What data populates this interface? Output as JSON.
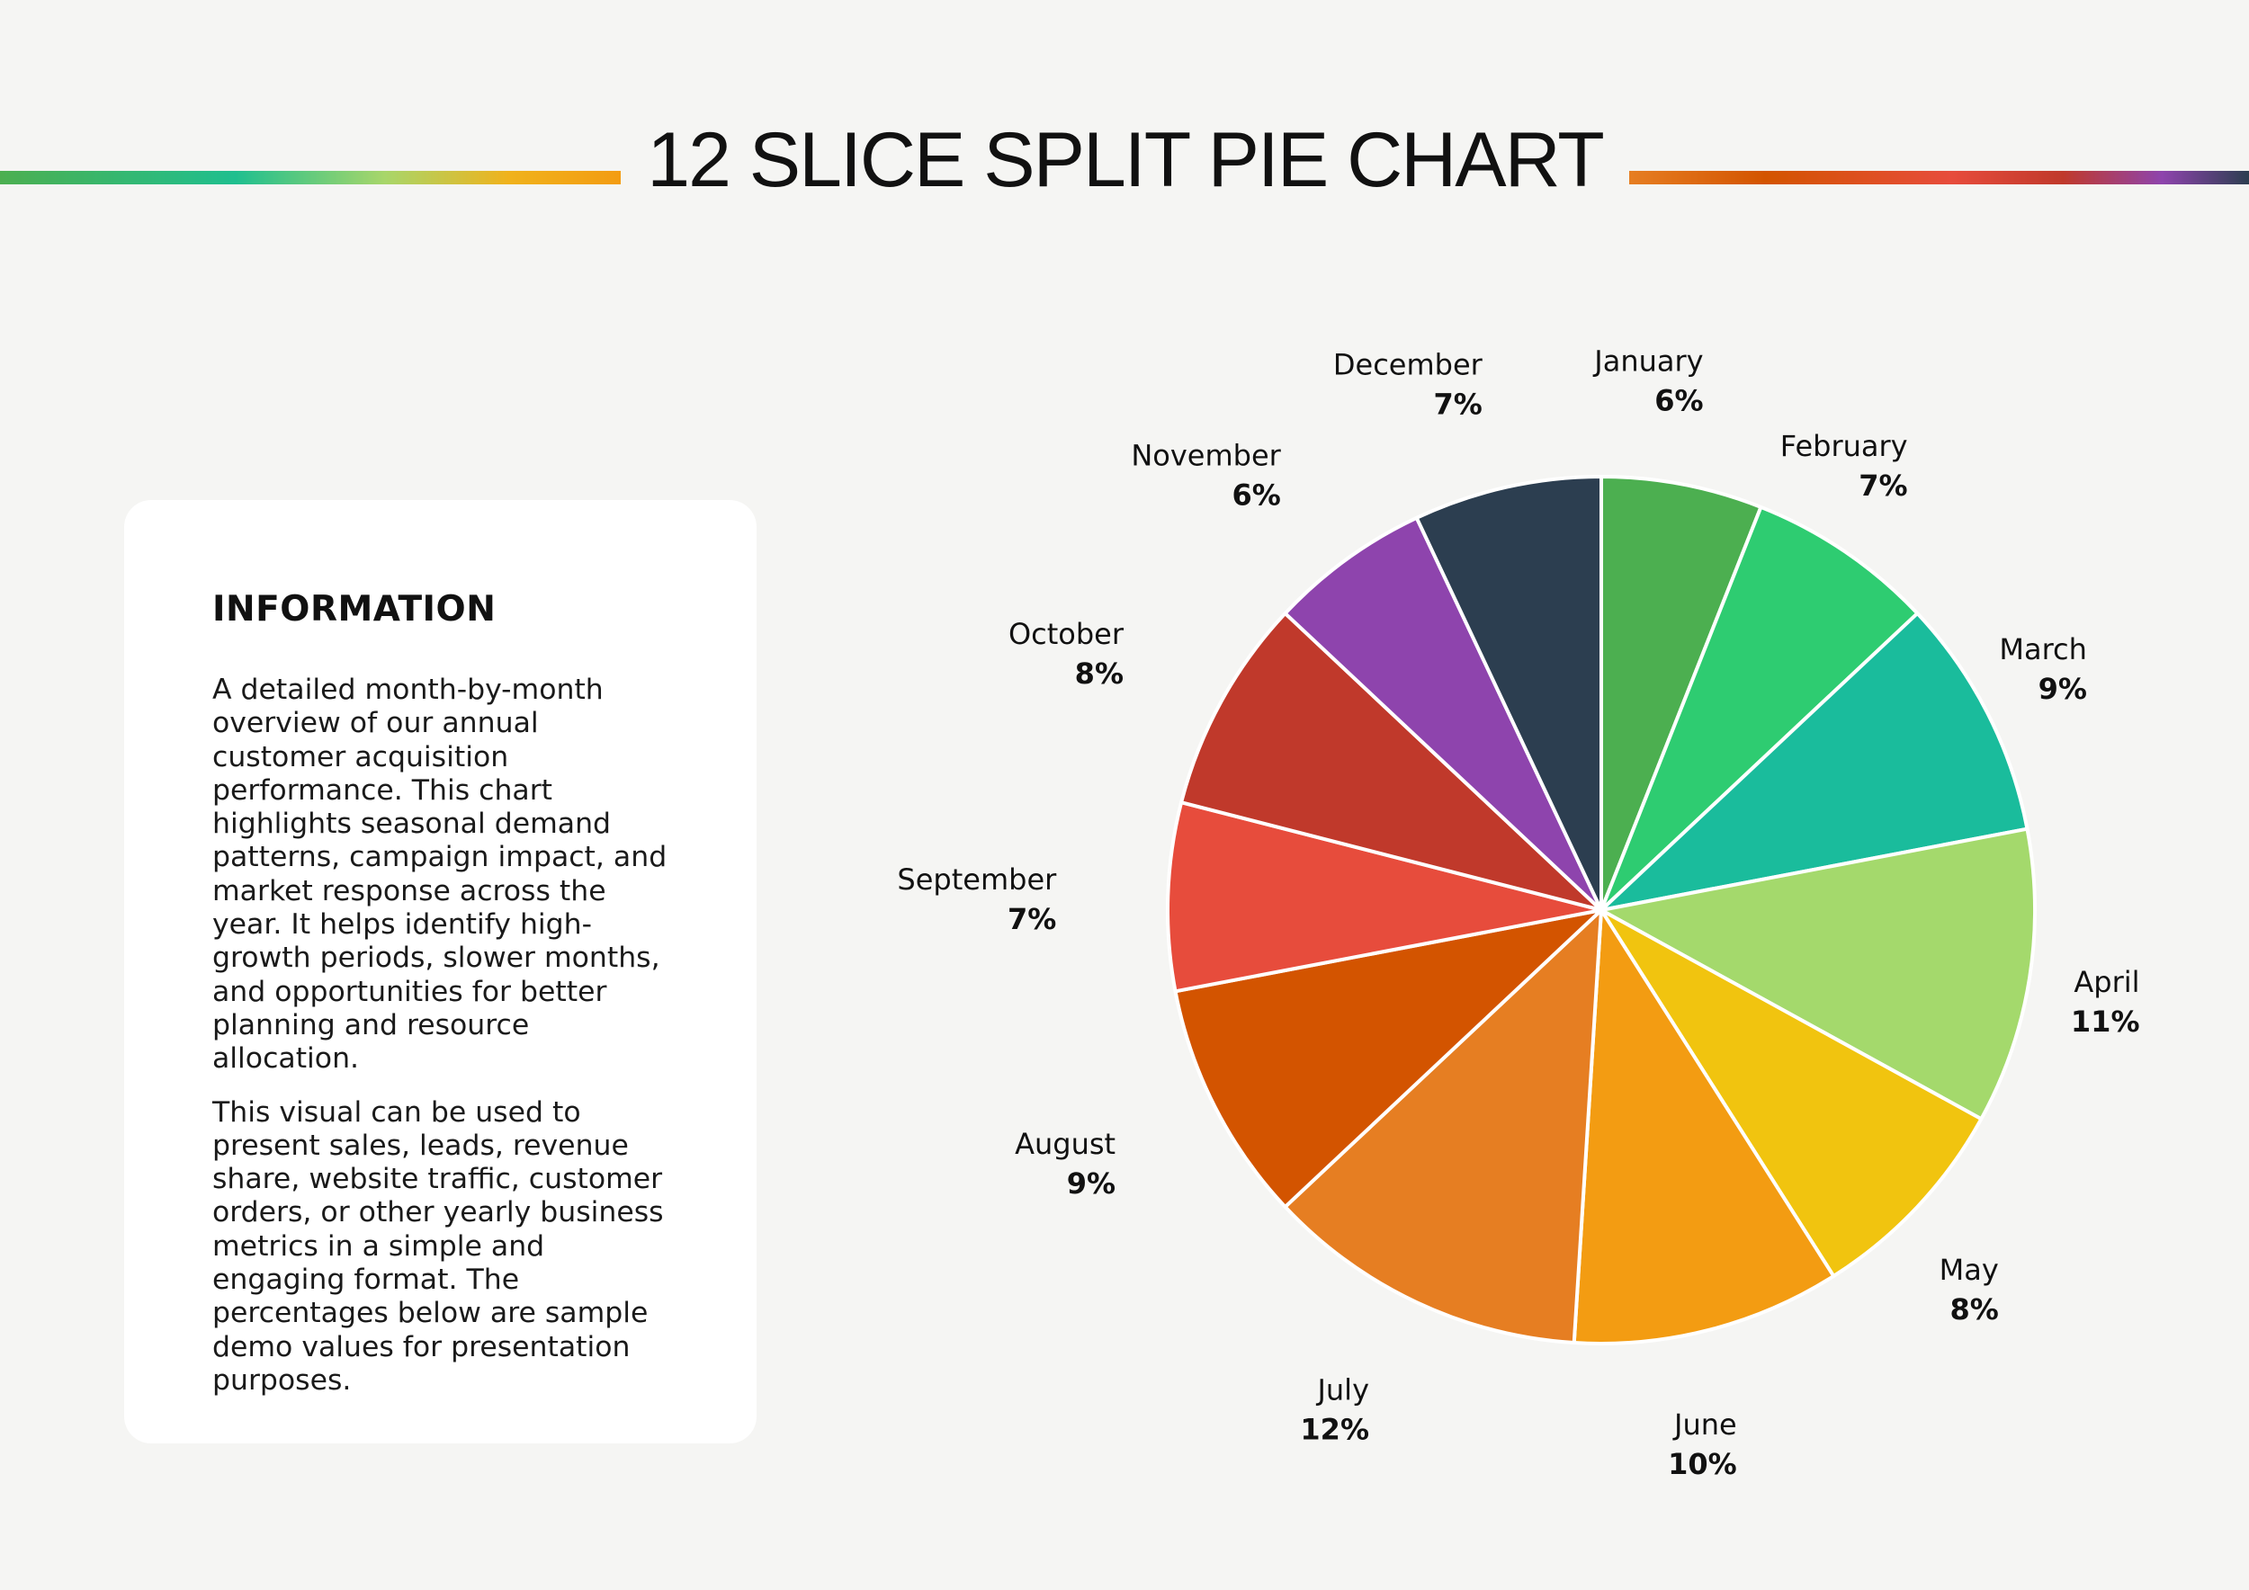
{
  "header": {
    "title": "12 SLICE SPLIT PIE CHART"
  },
  "info": {
    "heading": "INFORMATION",
    "paragraph_1": "A detailed month-by-month overview of our annual customer acquisition performance. This chart highlights seasonal demand patterns, campaign impact, and market response across the year. It helps identify high-growth periods, slower months, and opportunities for better planning and resource allocation.",
    "paragraph_2": "This visual can be used to present sales, leads, revenue share, website traffic, customer orders, or other yearly business metrics in a simple and engaging format. The percentages below are sample demo values for presentation purposes."
  },
  "colors": {
    "background": "#f5f5f3",
    "card": "#ffffff",
    "slice_border": "#ffffff"
  },
  "chart_data": {
    "type": "pie",
    "title": "12 SLICE SPLIT PIE CHART",
    "unit": "%",
    "start": "12 o'clock",
    "direction": "clockwise",
    "categories": [
      "January",
      "February",
      "March",
      "April",
      "May",
      "June",
      "July",
      "August",
      "September",
      "October",
      "November",
      "December"
    ],
    "values": [
      6,
      7,
      9,
      11,
      8,
      10,
      12,
      9,
      7,
      8,
      6,
      7
    ],
    "value_labels": [
      "6%",
      "7%",
      "9%",
      "11%",
      "8%",
      "10%",
      "12%",
      "9%",
      "7%",
      "8%",
      "6%",
      "7%"
    ],
    "colors": [
      "#4caf50",
      "#2ecc71",
      "#1abc9c",
      "#a4d96c",
      "#f1c40f",
      "#f39c12",
      "#e67e22",
      "#d35400",
      "#e74c3c",
      "#c0392b",
      "#8e44ad",
      "#2c3e50"
    ],
    "legend": "none"
  }
}
